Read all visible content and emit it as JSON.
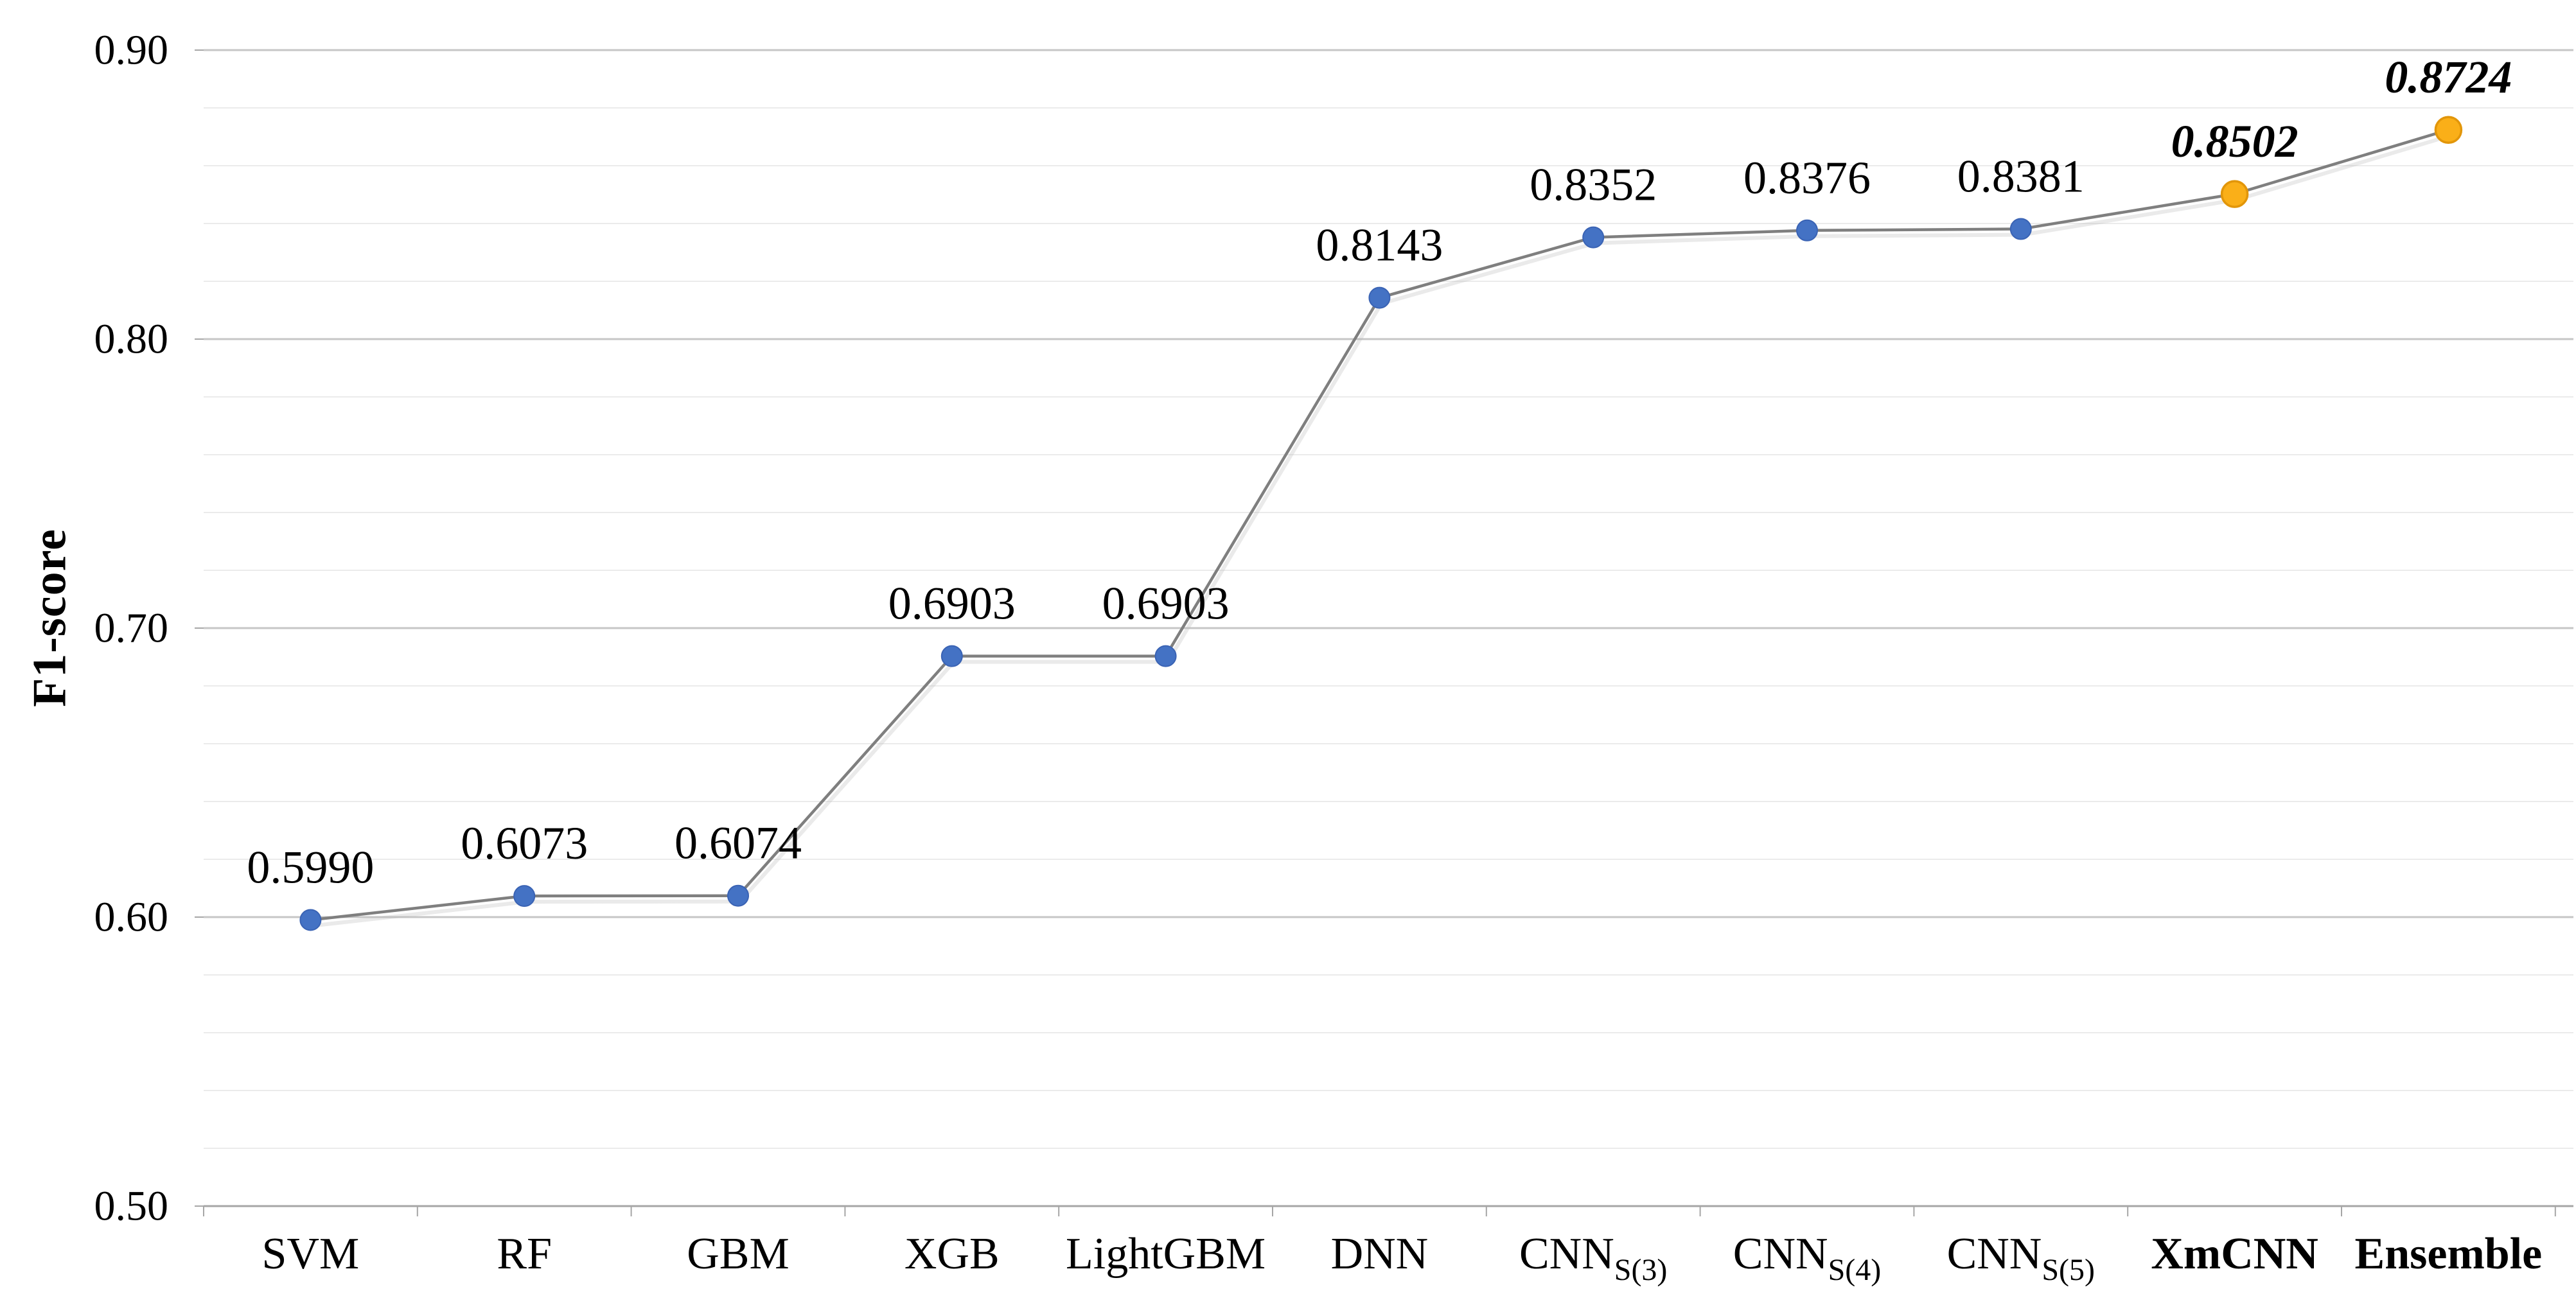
{
  "chart_data": {
    "type": "line",
    "title": "",
    "ylabel": "F1-score",
    "xlabel": "",
    "ylim": [
      0.5,
      0.9
    ],
    "major_grid_step": 0.1,
    "minor_grid_step": 0.02,
    "grid": true,
    "legend_position": "none",
    "ytick_labels": [
      "0.90",
      "0.80",
      "0.70",
      "0.60",
      "0.50"
    ],
    "ytick_values": [
      0.9,
      0.8,
      0.7,
      0.6,
      0.5
    ],
    "series_name": "F1-score",
    "categories": [
      "SVM",
      "RF",
      "GBM",
      "XGB",
      "LightGBM",
      "DNN",
      "CNN S(3)",
      "CNN S(4)",
      "CNN S(5)",
      "XmCNN",
      "Ensemble"
    ],
    "points": [
      {
        "category": "SVM",
        "sub": "",
        "value": 0.599,
        "label": "0.5990",
        "emphasis": false
      },
      {
        "category": "RF",
        "sub": "",
        "value": 0.6073,
        "label": "0.6073",
        "emphasis": false
      },
      {
        "category": "GBM",
        "sub": "",
        "value": 0.6074,
        "label": "0.6074",
        "emphasis": false
      },
      {
        "category": "XGB",
        "sub": "",
        "value": 0.6903,
        "label": "0.6903",
        "emphasis": false
      },
      {
        "category": "LightGBM",
        "sub": "",
        "value": 0.6903,
        "label": "0.6903",
        "emphasis": false
      },
      {
        "category": "DNN",
        "sub": "",
        "value": 0.8143,
        "label": "0.8143",
        "emphasis": false
      },
      {
        "category": "CNN",
        "sub": "S(3)",
        "value": 0.8352,
        "label": "0.8352",
        "emphasis": false
      },
      {
        "category": "CNN",
        "sub": "S(4)",
        "value": 0.8376,
        "label": "0.8376",
        "emphasis": false
      },
      {
        "category": "CNN",
        "sub": "S(5)",
        "value": 0.8381,
        "label": "0.8381",
        "emphasis": false
      },
      {
        "category": "XmCNN",
        "sub": "",
        "value": 0.8502,
        "label": "0.8502",
        "emphasis": true
      },
      {
        "category": "Ensemble",
        "sub": "",
        "value": 0.8724,
        "label": "0.8724",
        "emphasis": true
      }
    ],
    "colors": {
      "marker_default": "#4472C4",
      "marker_default_border": "#3A63B4",
      "marker_emphasis": "#FAAF18",
      "marker_emphasis_border": "#E2960A",
      "line": "#7F7F7F",
      "line_shadow": "#BBBBBB",
      "grid_minor": "#EBEBEB",
      "grid_major": "#C6C6C6",
      "axis": "#A6A6A6",
      "text": "#000000"
    }
  }
}
